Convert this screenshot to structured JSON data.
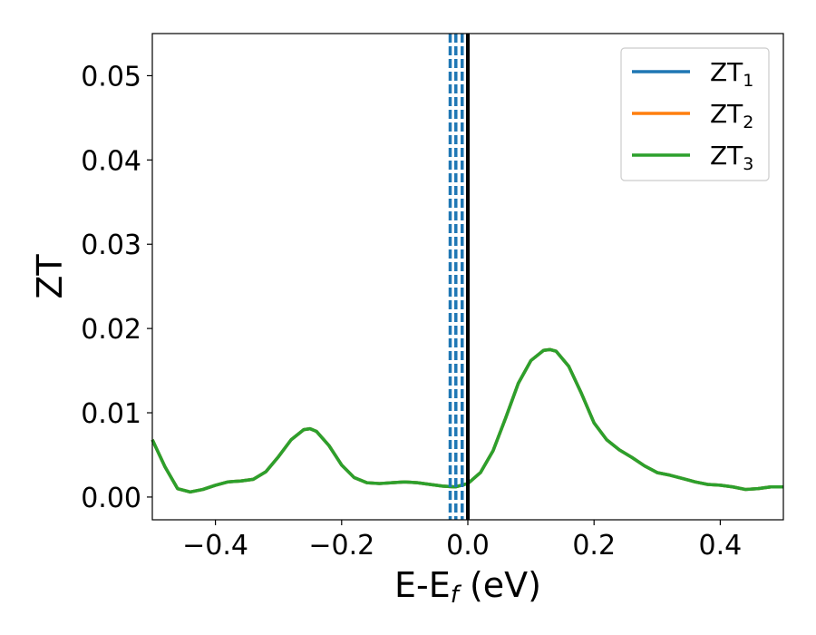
{
  "chart_data": {
    "type": "line",
    "xlabel": "E-E",
    "xlabel_sub": "f",
    "xlabel_unit": " (eV)",
    "ylabel": "ZT",
    "xlim": [
      -0.5,
      0.5
    ],
    "ylim": [
      -0.0027,
      0.055
    ],
    "xticks": [
      -0.4,
      -0.2,
      0.0,
      0.2,
      0.4
    ],
    "xtick_labels": [
      "−0.4",
      "−0.2",
      "0.0",
      "0.2",
      "0.4"
    ],
    "yticks": [
      0.0,
      0.01,
      0.02,
      0.03,
      0.04,
      0.05
    ],
    "ytick_labels": [
      "0.00",
      "0.01",
      "0.02",
      "0.03",
      "0.04",
      "0.05"
    ],
    "grid": false,
    "legend_position": "top-right",
    "series": [
      {
        "name": "ZT",
        "sub": "1",
        "color": "#1f77b4",
        "x": [
          -0.5,
          -0.48,
          -0.46,
          -0.44,
          -0.42,
          -0.4,
          -0.38,
          -0.36,
          -0.34,
          -0.32,
          -0.3,
          -0.28,
          -0.26,
          -0.25,
          -0.24,
          -0.22,
          -0.2,
          -0.18,
          -0.16,
          -0.14,
          -0.12,
          -0.1,
          -0.08,
          -0.06,
          -0.04,
          -0.02,
          0.0,
          0.02,
          0.04,
          0.06,
          0.08,
          0.1,
          0.12,
          0.13,
          0.14,
          0.16,
          0.18,
          0.2,
          0.22,
          0.24,
          0.26,
          0.28,
          0.3,
          0.32,
          0.34,
          0.36,
          0.38,
          0.4,
          0.42,
          0.44,
          0.46,
          0.48,
          0.5
        ],
        "y": [
          0.0068,
          0.0036,
          0.001,
          0.0006,
          0.0009,
          0.0014,
          0.0018,
          0.0019,
          0.0021,
          0.003,
          0.0048,
          0.0068,
          0.008,
          0.0081,
          0.0078,
          0.0061,
          0.0038,
          0.0023,
          0.0017,
          0.0016,
          0.0017,
          0.0018,
          0.0017,
          0.0015,
          0.0013,
          0.0012,
          0.0016,
          0.0029,
          0.0055,
          0.0094,
          0.0135,
          0.0162,
          0.0174,
          0.0175,
          0.0173,
          0.0155,
          0.0123,
          0.0088,
          0.0068,
          0.0056,
          0.0047,
          0.0037,
          0.0029,
          0.0026,
          0.0022,
          0.0018,
          0.0015,
          0.0014,
          0.0012,
          0.0009,
          0.001,
          0.0012,
          0.0012
        ]
      },
      {
        "name": "ZT",
        "sub": "2",
        "color": "#ff7f0e",
        "x": [
          -0.5,
          -0.48,
          -0.46,
          -0.44,
          -0.42,
          -0.4,
          -0.38,
          -0.36,
          -0.34,
          -0.32,
          -0.3,
          -0.28,
          -0.26,
          -0.25,
          -0.24,
          -0.22,
          -0.2,
          -0.18,
          -0.16,
          -0.14,
          -0.12,
          -0.1,
          -0.08,
          -0.06,
          -0.04,
          -0.02,
          0.0,
          0.02,
          0.04,
          0.06,
          0.08,
          0.1,
          0.12,
          0.13,
          0.14,
          0.16,
          0.18,
          0.2,
          0.22,
          0.24,
          0.26,
          0.28,
          0.3,
          0.32,
          0.34,
          0.36,
          0.38,
          0.4,
          0.42,
          0.44,
          0.46,
          0.48,
          0.5
        ],
        "y": [
          0.0068,
          0.0036,
          0.001,
          0.0006,
          0.0009,
          0.0014,
          0.0018,
          0.0019,
          0.0021,
          0.003,
          0.0048,
          0.0068,
          0.008,
          0.0081,
          0.0078,
          0.0061,
          0.0038,
          0.0023,
          0.0017,
          0.0016,
          0.0017,
          0.0018,
          0.0017,
          0.0015,
          0.0013,
          0.0012,
          0.0016,
          0.0029,
          0.0055,
          0.0094,
          0.0135,
          0.0162,
          0.0174,
          0.0175,
          0.0173,
          0.0155,
          0.0123,
          0.0088,
          0.0068,
          0.0056,
          0.0047,
          0.0037,
          0.0029,
          0.0026,
          0.0022,
          0.0018,
          0.0015,
          0.0014,
          0.0012,
          0.0009,
          0.001,
          0.0012,
          0.0012
        ]
      },
      {
        "name": "ZT",
        "sub": "3",
        "color": "#2ca02c",
        "x": [
          -0.5,
          -0.48,
          -0.46,
          -0.44,
          -0.42,
          -0.4,
          -0.38,
          -0.36,
          -0.34,
          -0.32,
          -0.3,
          -0.28,
          -0.26,
          -0.25,
          -0.24,
          -0.22,
          -0.2,
          -0.18,
          -0.16,
          -0.14,
          -0.12,
          -0.1,
          -0.08,
          -0.06,
          -0.04,
          -0.02,
          0.0,
          0.02,
          0.04,
          0.06,
          0.08,
          0.1,
          0.12,
          0.13,
          0.14,
          0.16,
          0.18,
          0.2,
          0.22,
          0.24,
          0.26,
          0.28,
          0.3,
          0.32,
          0.34,
          0.36,
          0.38,
          0.4,
          0.42,
          0.44,
          0.46,
          0.48,
          0.5
        ],
        "y": [
          0.0068,
          0.0036,
          0.001,
          0.0006,
          0.0009,
          0.0014,
          0.0018,
          0.0019,
          0.0021,
          0.003,
          0.0048,
          0.0068,
          0.008,
          0.0081,
          0.0078,
          0.0061,
          0.0038,
          0.0023,
          0.0017,
          0.0016,
          0.0017,
          0.0018,
          0.0017,
          0.0015,
          0.0013,
          0.0012,
          0.0016,
          0.0029,
          0.0055,
          0.0094,
          0.0135,
          0.0162,
          0.0174,
          0.0175,
          0.0173,
          0.0155,
          0.0123,
          0.0088,
          0.0068,
          0.0056,
          0.0047,
          0.0037,
          0.0029,
          0.0026,
          0.0022,
          0.0018,
          0.0015,
          0.0014,
          0.0012,
          0.0009,
          0.001,
          0.0012,
          0.0012
        ]
      }
    ],
    "vlines": [
      {
        "x": -0.028,
        "style": "dashed",
        "color": "#1f77b4"
      },
      {
        "x": -0.019,
        "style": "dashed",
        "color": "#1f77b4"
      },
      {
        "x": -0.009,
        "style": "dashed",
        "color": "#1f77b4"
      },
      {
        "x": 0.0,
        "style": "solid",
        "color": "#000000"
      }
    ]
  }
}
